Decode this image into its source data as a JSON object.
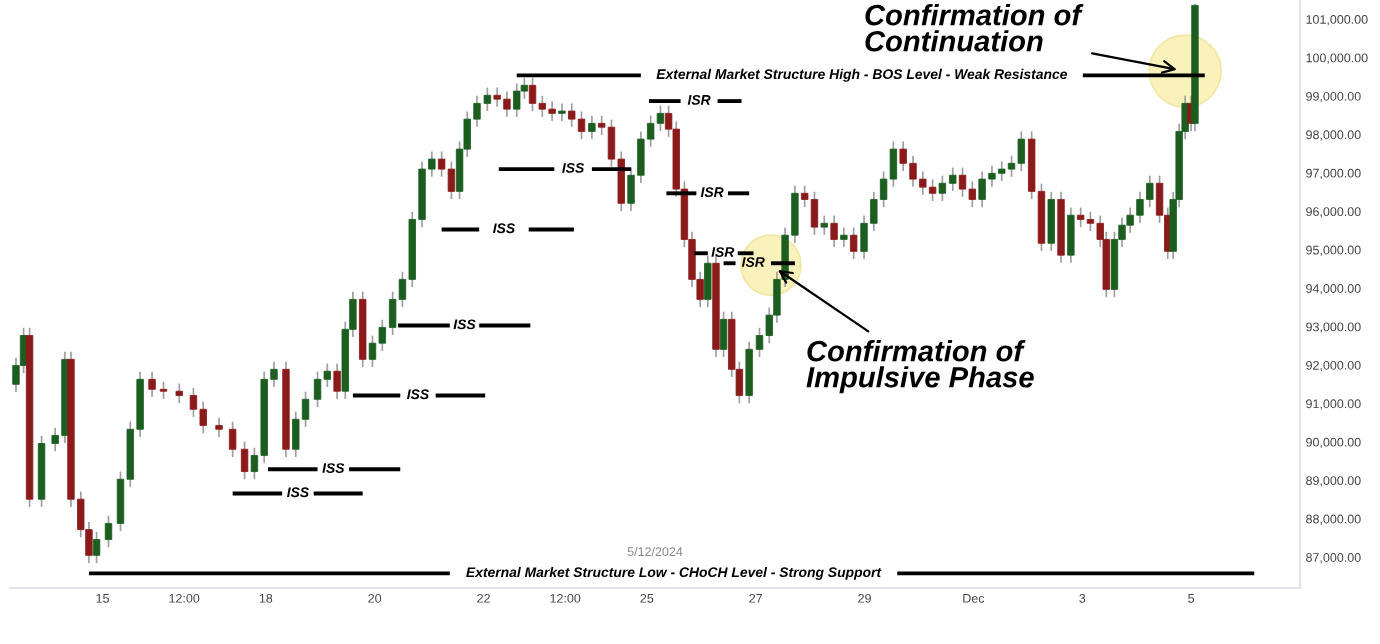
{
  "chart_data": {
    "type": "candlestick",
    "x": [
      "2024-11-13T09:50",
      "2024-11-13T13:12",
      "2024-11-13T15:50",
      "2024-11-13T21:07",
      "2024-11-14T03:07",
      "2024-11-14T07:26",
      "2024-11-14T10:05",
      "2024-11-14T14:24",
      "2024-11-14T18:00",
      "2024-11-14T21:22",
      "2024-11-15T02:38",
      "2024-11-15T07:55",
      "2024-11-15T12:14",
      "2024-11-15T16:34",
      "2024-11-15T21:50",
      "2024-11-16T02:53",
      "2024-11-16T09:50",
      "2024-11-16T16:05",
      "2024-11-16T20:24",
      "2024-11-17T03:22",
      "2024-11-17T09:22",
      "2024-11-17T14:38",
      "2024-11-17T18:58",
      "2024-11-17T23:17",
      "2024-11-18T03:36",
      "2024-11-18T08:53",
      "2024-11-18T13:12",
      "2024-11-18T17:31",
      "2024-11-18T22:48",
      "2024-11-19T03:07",
      "2024-11-19T07:26",
      "2024-11-19T11:02",
      "2024-11-19T14:24",
      "2024-11-19T18:43",
      "2024-11-19T23:02",
      "2024-11-20T03:22",
      "2024-11-20T07:55",
      "2024-11-20T12:14",
      "2024-11-20T16:34",
      "2024-11-20T20:53",
      "2024-11-21T01:12",
      "2024-11-21T05:31",
      "2024-11-21T09:50",
      "2024-11-21T13:26",
      "2024-11-21T16:48",
      "2024-11-21T21:07",
      "2024-11-22T01:41",
      "2024-11-22T06:00",
      "2024-11-22T10:19",
      "2024-11-22T14:38",
      "2024-11-22T18:00",
      "2024-11-22T21:36",
      "2024-11-23T01:55",
      "2024-11-23T06:14",
      "2024-11-23T10:34",
      "2024-11-23T14:53",
      "2024-11-23T19:12",
      "2024-11-23T23:46",
      "2024-11-24T04:05",
      "2024-11-24T08:24",
      "2024-11-24T12:43",
      "2024-11-24T17:02",
      "2024-11-24T21:22",
      "2024-11-25T01:41",
      "2024-11-25T06:00",
      "2024-11-25T09:36",
      "2024-11-25T12:58",
      "2024-11-25T16:34",
      "2024-11-25T19:55",
      "2024-11-25T23:31",
      "2024-11-26T02:53",
      "2024-11-26T06:29",
      "2024-11-26T09:50",
      "2024-11-26T13:26",
      "2024-11-26T16:48",
      "2024-11-26T21:07",
      "2024-11-27T01:41",
      "2024-11-27T06:00",
      "2024-11-27T09:22",
      "2024-11-27T12:58",
      "2024-11-27T17:17",
      "2024-11-27T21:36",
      "2024-11-28T01:55",
      "2024-11-28T06:14",
      "2024-11-28T10:34",
      "2024-11-28T14:53",
      "2024-11-28T19:12",
      "2024-11-28T23:46",
      "2024-11-29T04:05",
      "2024-11-29T08:24",
      "2024-11-29T12:43",
      "2024-11-29T17:02",
      "2024-11-29T21:22",
      "2024-11-30T01:41",
      "2024-11-30T06:00",
      "2024-11-30T10:19",
      "2024-11-30T14:53",
      "2024-11-30T19:12",
      "2024-11-30T23:31",
      "2024-12-01T03:50",
      "2024-12-01T08:10",
      "2024-12-01T12:29",
      "2024-12-01T16:48",
      "2024-12-01T21:07",
      "2024-12-02T01:41",
      "2024-12-02T06:00",
      "2024-12-02T10:19",
      "2024-12-02T14:38",
      "2024-12-02T18:58",
      "2024-12-02T23:17",
      "2024-12-03T03:36",
      "2024-12-03T07:55",
      "2024-12-03T10:34",
      "2024-12-03T14:10",
      "2024-12-03T17:31",
      "2024-12-03T21:07",
      "2024-12-04T01:26",
      "2024-12-04T05:46",
      "2024-12-04T10:05",
      "2024-12-04T13:41",
      "2024-12-04T16:05",
      "2024-12-04T18:43",
      "2024-12-04T21:22",
      "2024-12-05T00:00",
      "2024-12-05T01:41"
    ],
    "ohlc": [
      [
        91500,
        92190,
        91300,
        91990
      ],
      [
        91990,
        92970,
        91790,
        92770
      ],
      [
        92770,
        92970,
        88310,
        88510
      ],
      [
        88510,
        90160,
        88310,
        89960
      ],
      [
        89960,
        90370,
        89760,
        90170
      ],
      [
        90170,
        92350,
        89970,
        92150
      ],
      [
        92150,
        92350,
        88310,
        88510
      ],
      [
        88510,
        88710,
        87520,
        87720
      ],
      [
        87720,
        87920,
        86850,
        87050
      ],
      [
        87050,
        87660,
        86850,
        87460
      ],
      [
        87460,
        88080,
        87260,
        87880
      ],
      [
        87880,
        89230,
        87680,
        89030
      ],
      [
        89030,
        90530,
        88830,
        90330
      ],
      [
        90330,
        91830,
        90130,
        91630
      ],
      [
        91630,
        91830,
        91170,
        91370
      ],
      [
        91370,
        91570,
        91120,
        91320
      ],
      [
        91320,
        91520,
        91010,
        91210
      ],
      [
        91210,
        91410,
        90650,
        90850
      ],
      [
        90850,
        91050,
        90230,
        90430
      ],
      [
        90430,
        90630,
        90130,
        90330
      ],
      [
        90330,
        90530,
        89610,
        89810
      ],
      [
        89810,
        90010,
        89030,
        89230
      ],
      [
        89230,
        89850,
        89030,
        89650
      ],
      [
        89650,
        91830,
        89450,
        91630
      ],
      [
        91630,
        92090,
        91430,
        91890
      ],
      [
        91890,
        92090,
        89610,
        89810
      ],
      [
        89810,
        90790,
        89610,
        90590
      ],
      [
        90590,
        91310,
        90390,
        91110
      ],
      [
        91110,
        91830,
        90910,
        91630
      ],
      [
        91630,
        92040,
        91430,
        91840
      ],
      [
        91840,
        92040,
        91120,
        91320
      ],
      [
        91320,
        93130,
        91120,
        92930
      ],
      [
        92930,
        93910,
        92730,
        93710
      ],
      [
        93710,
        93910,
        91950,
        92150
      ],
      [
        92150,
        92770,
        91950,
        92570
      ],
      [
        92570,
        93180,
        92370,
        92980
      ],
      [
        92980,
        93910,
        92780,
        93710
      ],
      [
        93710,
        94430,
        93510,
        94230
      ],
      [
        94230,
        95990,
        94030,
        95790
      ],
      [
        95790,
        97300,
        95590,
        97100
      ],
      [
        97100,
        97560,
        96900,
        97360
      ],
      [
        97360,
        97560,
        96900,
        97100
      ],
      [
        97100,
        97300,
        96320,
        96520
      ],
      [
        96520,
        97820,
        96320,
        97620
      ],
      [
        97620,
        98600,
        97420,
        98400
      ],
      [
        98400,
        99010,
        98200,
        98810
      ],
      [
        98810,
        99220,
        98610,
        99020
      ],
      [
        99020,
        99220,
        98720,
        98920
      ],
      [
        98920,
        99120,
        98460,
        98660
      ],
      [
        98660,
        99330,
        98460,
        99130
      ],
      [
        99130,
        99480,
        98930,
        99280
      ],
      [
        99280,
        99480,
        98610,
        98810
      ],
      [
        98810,
        99010,
        98460,
        98660
      ],
      [
        98660,
        98860,
        98350,
        98550
      ],
      [
        98550,
        98810,
        98350,
        98610
      ],
      [
        98610,
        98810,
        98200,
        98400
      ],
      [
        98400,
        98600,
        97880,
        98080
      ],
      [
        98080,
        98490,
        97880,
        98290
      ],
      [
        98290,
        98490,
        97990,
        98190
      ],
      [
        98190,
        98390,
        97160,
        97360
      ],
      [
        97360,
        97560,
        96010,
        96210
      ],
      [
        96210,
        97140,
        96010,
        96940
      ],
      [
        96940,
        98080,
        96740,
        97880
      ],
      [
        97880,
        98490,
        97680,
        98290
      ],
      [
        98290,
        98750,
        98090,
        98550
      ],
      [
        98550,
        98750,
        97940,
        98140
      ],
      [
        98140,
        98340,
        96380,
        96580
      ],
      [
        96580,
        96780,
        95070,
        95270
      ],
      [
        95270,
        95470,
        94030,
        94230
      ],
      [
        94230,
        94430,
        93510,
        93710
      ],
      [
        93710,
        94850,
        93510,
        94650
      ],
      [
        94650,
        94850,
        92210,
        92410
      ],
      [
        92410,
        93390,
        92210,
        93190
      ],
      [
        93190,
        93390,
        91690,
        91890
      ],
      [
        91890,
        92090,
        91010,
        91210
      ],
      [
        91210,
        92610,
        91010,
        92410
      ],
      [
        92410,
        92970,
        92210,
        92770
      ],
      [
        92770,
        93500,
        92570,
        93300
      ],
      [
        93300,
        94430,
        93100,
        94230
      ],
      [
        94230,
        95580,
        94030,
        95380
      ],
      [
        95380,
        96670,
        95180,
        96470
      ],
      [
        96470,
        96670,
        96110,
        96310
      ],
      [
        96310,
        96510,
        95390,
        95590
      ],
      [
        95590,
        95890,
        95390,
        95690
      ],
      [
        95690,
        95890,
        95070,
        95270
      ],
      [
        95270,
        95580,
        95070,
        95380
      ],
      [
        95380,
        95580,
        94760,
        94960
      ],
      [
        94960,
        95890,
        94760,
        95690
      ],
      [
        95690,
        96510,
        95490,
        96310
      ],
      [
        96310,
        97040,
        96110,
        96840
      ],
      [
        96840,
        97820,
        96640,
        97620
      ],
      [
        97620,
        97820,
        97050,
        97250
      ],
      [
        97250,
        97450,
        96640,
        96840
      ],
      [
        96840,
        97040,
        96430,
        96630
      ],
      [
        96630,
        96830,
        96270,
        96470
      ],
      [
        96470,
        96930,
        96270,
        96730
      ],
      [
        96730,
        97140,
        96530,
        96940
      ],
      [
        96940,
        97140,
        96380,
        96580
      ],
      [
        96580,
        96780,
        96110,
        96310
      ],
      [
        96310,
        97040,
        96110,
        96840
      ],
      [
        96840,
        97190,
        96640,
        96990
      ],
      [
        96990,
        97300,
        96790,
        97100
      ],
      [
        97100,
        97450,
        96900,
        97250
      ],
      [
        97250,
        98080,
        97050,
        97880
      ],
      [
        97880,
        98080,
        96320,
        96520
      ],
      [
        96520,
        96720,
        94970,
        95170
      ],
      [
        95170,
        96510,
        94970,
        96310
      ],
      [
        96310,
        96510,
        94660,
        94860
      ],
      [
        94860,
        96100,
        94660,
        95900
      ],
      [
        95900,
        96100,
        95590,
        95790
      ],
      [
        95790,
        95990,
        95490,
        95690
      ],
      [
        95690,
        95890,
        95070,
        95270
      ],
      [
        95270,
        95470,
        93770,
        93970
      ],
      [
        93970,
        95470,
        93770,
        95270
      ],
      [
        95270,
        95840,
        95070,
        95640
      ],
      [
        95640,
        96100,
        95440,
        95900
      ],
      [
        95900,
        96510,
        95700,
        96310
      ],
      [
        96310,
        96930,
        96110,
        96730
      ],
      [
        96730,
        96930,
        95700,
        95900
      ],
      [
        95900,
        96100,
        94760,
        94960
      ],
      [
        94960,
        96510,
        94760,
        96310
      ],
      [
        96310,
        98280,
        96110,
        98080
      ],
      [
        98080,
        99010,
        97880,
        98810
      ],
      [
        98810,
        99010,
        98090,
        98290
      ],
      [
        98290,
        101400,
        98090,
        101360
      ]
    ],
    "colors": [
      "#1b5e20",
      "#1b5e20",
      "#8b1a1a",
      "#1b5e20",
      "#1b5e20",
      "#1b5e20",
      "#8b1a1a",
      "#8b1a1a",
      "#8b1a1a",
      "#1b5e20",
      "#1b5e20",
      "#1b5e20",
      "#1b5e20",
      "#1b5e20",
      "#8b1a1a",
      "#8b1a1a",
      "#8b1a1a",
      "#8b1a1a",
      "#8b1a1a",
      "#8b1a1a",
      "#8b1a1a",
      "#8b1a1a",
      "#1b5e20",
      "#1b5e20",
      "#1b5e20",
      "#8b1a1a",
      "#1b5e20",
      "#1b5e20",
      "#1b5e20",
      "#1b5e20",
      "#8b1a1a",
      "#1b5e20",
      "#1b5e20",
      "#8b1a1a",
      "#1b5e20",
      "#1b5e20",
      "#1b5e20",
      "#1b5e20",
      "#1b5e20",
      "#1b5e20",
      "#1b5e20",
      "#8b1a1a",
      "#8b1a1a",
      "#1b5e20",
      "#1b5e20",
      "#1b5e20",
      "#1b5e20",
      "#8b1a1a",
      "#8b1a1a",
      "#1b5e20",
      "#1b5e20",
      "#8b1a1a",
      "#8b1a1a",
      "#8b1a1a",
      "#1b5e20",
      "#8b1a1a",
      "#8b1a1a",
      "#1b5e20",
      "#8b1a1a",
      "#8b1a1a",
      "#8b1a1a",
      "#1b5e20",
      "#1b5e20",
      "#1b5e20",
      "#1b5e20",
      "#8b1a1a",
      "#8b1a1a",
      "#8b1a1a",
      "#8b1a1a",
      "#8b1a1a",
      "#1b5e20",
      "#8b1a1a",
      "#1b5e20",
      "#8b1a1a",
      "#8b1a1a",
      "#1b5e20",
      "#1b5e20",
      "#1b5e20",
      "#1b5e20",
      "#1b5e20",
      "#1b5e20",
      "#8b1a1a",
      "#8b1a1a",
      "#1b5e20",
      "#8b1a1a",
      "#1b5e20",
      "#8b1a1a",
      "#1b5e20",
      "#1b5e20",
      "#1b5e20",
      "#1b5e20",
      "#8b1a1a",
      "#8b1a1a",
      "#8b1a1a",
      "#8b1a1a",
      "#1b5e20",
      "#1b5e20",
      "#8b1a1a",
      "#8b1a1a",
      "#1b5e20",
      "#1b5e20",
      "#1b5e20",
      "#1b5e20",
      "#1b5e20",
      "#8b1a1a",
      "#8b1a1a",
      "#1b5e20",
      "#8b1a1a",
      "#1b5e20",
      "#8b1a1a",
      "#8b1a1a",
      "#8b1a1a",
      "#8b1a1a",
      "#1b5e20",
      "#1b5e20",
      "#1b5e20",
      "#1b5e20",
      "#1b5e20",
      "#8b1a1a",
      "#8b1a1a",
      "#1b5e20",
      "#1b5e20",
      "#1b5e20",
      "#8b1a1a",
      "#1b5e20"
    ],
    "series": [
      {
        "type": "line",
        "color": "#000000",
        "x": [
          "2024-11-22T14:38",
          "2024-11-24T21:22"
        ],
        "values": [
          99540,
          99540
        ]
      },
      {
        "type": "line",
        "color": "#000000",
        "x": [
          "2024-12-03T00:14",
          "2024-12-05T06:00"
        ],
        "values": [
          99540,
          99540
        ]
      },
      {
        "type": "line",
        "color": "#000000",
        "x": [
          "2024-11-25T00:58",
          "2024-11-25T14:53"
        ],
        "values": [
          98870,
          98870
        ]
      },
      {
        "type": "line",
        "color": "#000000",
        "x": [
          "2024-11-26T07:12",
          "2024-11-26T17:46"
        ],
        "values": [
          98870,
          98870
        ]
      },
      {
        "type": "line",
        "color": "#000000",
        "x": [
          "2024-11-22T06:43",
          "2024-11-23T07:12"
        ],
        "values": [
          97100,
          97100
        ]
      },
      {
        "type": "line",
        "color": "#000000",
        "x": [
          "2024-11-23T23:46",
          "2024-11-24T17:02"
        ],
        "values": [
          97100,
          97100
        ]
      },
      {
        "type": "line",
        "color": "#000000",
        "x": [
          "2024-11-25T08:38",
          "2024-11-25T21:50"
        ],
        "values": [
          96470,
          96470
        ]
      },
      {
        "type": "line",
        "color": "#000000",
        "x": [
          "2024-11-26T11:46",
          "2024-11-26T21:07"
        ],
        "values": [
          96470,
          96470
        ]
      },
      {
        "type": "line",
        "color": "#000000",
        "x": [
          "2024-11-21T05:31",
          "2024-11-21T22:05"
        ],
        "values": [
          95530,
          95530
        ]
      },
      {
        "type": "line",
        "color": "#000000",
        "x": [
          "2024-11-22T19:55",
          "2024-11-23T15:50"
        ],
        "values": [
          95530,
          95530
        ]
      },
      {
        "type": "line",
        "color": "#000000",
        "x": [
          "2024-11-25T20:53",
          "2024-11-26T02:53"
        ],
        "values": [
          94910,
          94910
        ]
      },
      {
        "type": "line",
        "color": "#000000",
        "x": [
          "2024-11-26T16:05",
          "2024-11-26T23:02"
        ],
        "values": [
          94910,
          94910
        ]
      },
      {
        "type": "line",
        "color": "#000000",
        "x": [
          "2024-11-26T09:50",
          "2024-11-26T15:07"
        ],
        "values": [
          94650,
          94650
        ]
      },
      {
        "type": "line",
        "color": "#000000",
        "x": [
          "2024-11-27T06:43",
          "2024-11-27T17:17"
        ],
        "values": [
          94650,
          94650
        ]
      },
      {
        "type": "line",
        "color": "#000000",
        "x": [
          "2024-11-20T10:19",
          "2024-11-21T09:07"
        ],
        "values": [
          93030,
          93030
        ]
      },
      {
        "type": "line",
        "color": "#000000",
        "x": [
          "2024-11-21T22:05",
          "2024-11-22T20:38"
        ],
        "values": [
          93030,
          93030
        ]
      },
      {
        "type": "line",
        "color": "#000000",
        "x": [
          "2024-11-19T14:24",
          "2024-11-20T11:17"
        ],
        "values": [
          91210,
          91210
        ]
      },
      {
        "type": "line",
        "color": "#000000",
        "x": [
          "2024-11-21T02:53",
          "2024-11-22T00:43"
        ],
        "values": [
          91210,
          91210
        ]
      },
      {
        "type": "line",
        "color": "#000000",
        "x": [
          "2024-11-18T00:58",
          "2024-11-18T22:48"
        ],
        "values": [
          89290,
          89290
        ]
      },
      {
        "type": "line",
        "color": "#000000",
        "x": [
          "2024-11-19T12:43",
          "2024-11-20T11:17"
        ],
        "values": [
          89290,
          89290
        ]
      },
      {
        "type": "line",
        "color": "#000000",
        "x": [
          "2024-11-17T09:22",
          "2024-11-18T07:12"
        ],
        "values": [
          88660,
          88660
        ]
      },
      {
        "type": "line",
        "color": "#000000",
        "x": [
          "2024-11-18T21:07",
          "2024-11-19T18:43"
        ],
        "values": [
          88660,
          88660
        ]
      },
      {
        "type": "line",
        "color": "#000000",
        "x": [
          "2024-11-14T18:00",
          "2024-11-21T09:07"
        ],
        "values": [
          86580,
          86580
        ]
      },
      {
        "type": "line",
        "color": "#000000",
        "x": [
          "2024-11-29T14:24",
          "2024-12-06T03:50"
        ],
        "values": [
          86580,
          86580
        ]
      }
    ],
    "annotations": [
      "External Market Structure High - BOS Level - Weak Resistance",
      "ISR",
      "ISS",
      "ISR",
      "ISS",
      "ISR",
      "ISR",
      "ISS",
      "ISS",
      "ISS",
      "ISS",
      "External Market Structure Low - CHoCH Level - Strong Support",
      {
        "text": "Confirmation of\nImpulsive Phase",
        "x": "2024-11-27T06:43",
        "y": 94600
      },
      {
        "text": "Confirmation of\nContinuation",
        "x": "2024-12-04T21:22",
        "y": 99650
      },
      "5/12/2024"
    ],
    "xlim": [
      "2024-11-13T07:12",
      "2024-12-07T00:00"
    ],
    "xticks": [
      {
        "value": "2024-11-15",
        "label": "15"
      },
      {
        "value": "2024-11-16T12:00",
        "label": "12:00"
      },
      {
        "value": "2024-11-18",
        "label": "18"
      },
      {
        "value": "2024-11-20",
        "label": "20"
      },
      {
        "value": "2024-11-22",
        "label": "22"
      },
      {
        "value": "2024-11-23T12:00",
        "label": "12:00"
      },
      {
        "value": "2024-11-25",
        "label": "25"
      },
      {
        "value": "2024-11-27",
        "label": "27"
      },
      {
        "value": "2024-11-29",
        "label": "29"
      },
      {
        "value": "2024-12-01",
        "label": "Dec"
      },
      {
        "value": "2024-12-03",
        "label": "3"
      },
      {
        "value": "2024-12-05",
        "label": "5"
      }
    ],
    "ylim": [
      86200,
      101500
    ],
    "yticks": [
      {
        "value": 87000,
        "label": "87,000.00"
      },
      {
        "value": 88000,
        "label": "88,000.00"
      },
      {
        "value": 89000,
        "label": "89,000.00"
      },
      {
        "value": 90000,
        "label": "90,000.00"
      },
      {
        "value": 91000,
        "label": "91,000.00"
      },
      {
        "value": 92000,
        "label": "92,000.00"
      },
      {
        "value": 93000,
        "label": "93,000.00"
      },
      {
        "value": 94000,
        "label": "94,000.00"
      },
      {
        "value": 95000,
        "label": "95,000.00"
      },
      {
        "value": 96000,
        "label": "96,000.00"
      },
      {
        "value": 97000,
        "label": "97,000.00"
      },
      {
        "value": 98000,
        "label": "98,000.00"
      },
      {
        "value": 99000,
        "label": "99,000.00"
      },
      {
        "value": 100000,
        "label": "100,000.00"
      },
      {
        "value": 101000,
        "label": "101,000.00"
      }
    ]
  }
}
